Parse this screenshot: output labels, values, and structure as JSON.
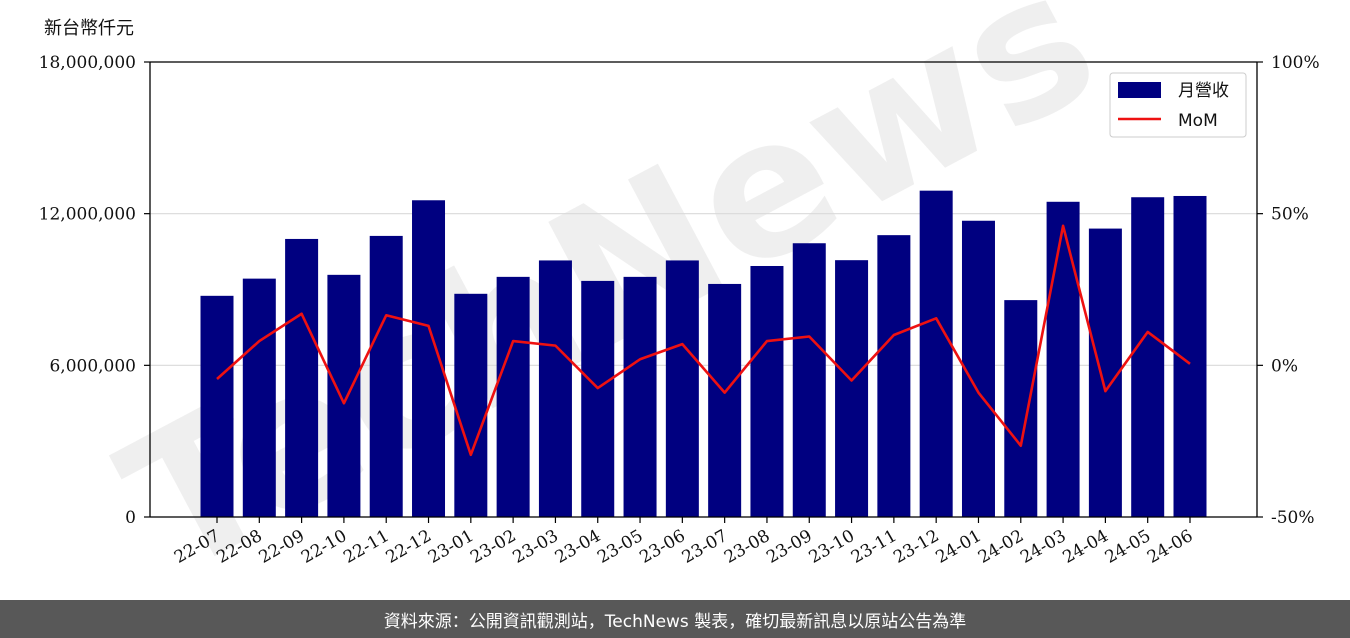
{
  "unit_label": "新台幣仟元",
  "footer": "資料來源：公開資訊觀測站，TechNews 製表，確切最新訊息以原站公告為準",
  "watermark": "TechNews",
  "colors": {
    "bar": "#000080",
    "line": "#ee1111",
    "grid": "#d9d9d9",
    "footer_bg": "#585858"
  },
  "chart_data": {
    "type": "bar",
    "categories": [
      "22-07",
      "22-08",
      "22-09",
      "22-10",
      "22-11",
      "22-12",
      "23-01",
      "23-02",
      "23-03",
      "23-04",
      "23-05",
      "23-06",
      "23-07",
      "23-08",
      "23-09",
      "23-10",
      "23-11",
      "23-12",
      "24-01",
      "24-02",
      "24-03",
      "24-04",
      "24-05",
      "24-06"
    ],
    "series": [
      {
        "name": "月營收",
        "type": "bar",
        "axis": "left",
        "values": [
          8750000,
          9430000,
          11000000,
          9580000,
          11120000,
          12530000,
          8830000,
          9500000,
          10150000,
          9340000,
          9500000,
          10150000,
          9220000,
          9930000,
          10830000,
          10160000,
          11150000,
          12910000,
          11720000,
          8580000,
          12470000,
          11410000,
          12650000,
          12700000
        ]
      },
      {
        "name": "MoM",
        "type": "line",
        "axis": "right",
        "values": [
          -4.5,
          8,
          17,
          -12.5,
          16.5,
          13,
          -29.5,
          8,
          6.5,
          -7.5,
          2,
          7,
          -9,
          8,
          9.5,
          -5,
          10,
          15.5,
          -9,
          -26.5,
          46,
          -8.5,
          11,
          0.5
        ]
      }
    ],
    "y_left": {
      "ylim": [
        0,
        18000000
      ],
      "ticks": [
        "0",
        "6,000,000",
        "12,000,000",
        "18,000,000"
      ],
      "tick_values": [
        0,
        6000000,
        12000000,
        18000000
      ]
    },
    "y_right": {
      "ylim": [
        -50,
        100
      ],
      "ticks": [
        "-50%",
        "0%",
        "50%",
        "100%"
      ],
      "tick_values": [
        -50,
        0,
        50,
        100
      ]
    },
    "grid": true,
    "legend": "top-right"
  }
}
